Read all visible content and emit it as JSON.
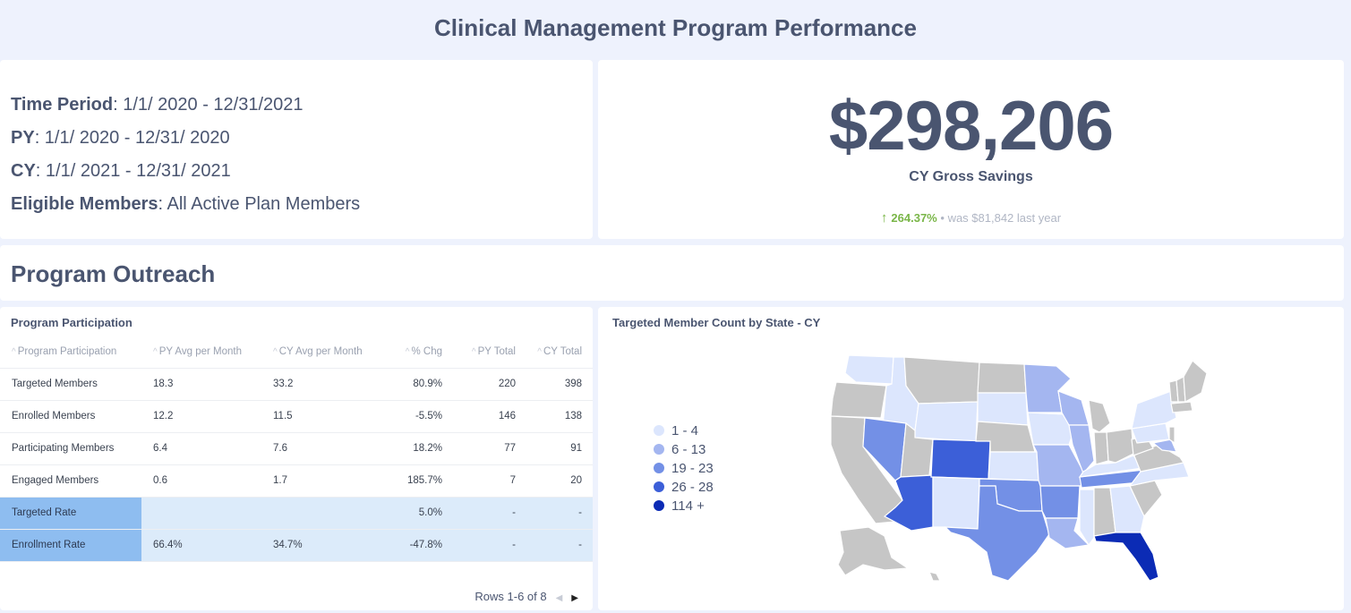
{
  "header": {
    "title": "Clinical Management Program Performance"
  },
  "info": {
    "lines": [
      {
        "label": "Time Period",
        "value": ": 1/1/ 2020 - 12/31/2021"
      },
      {
        "label": "PY",
        "value": ": 1/1/ 2020 - 12/31/ 2020"
      },
      {
        "label": "CY",
        "value": ": 1/1/ 2021 - 12/31/ 2021"
      },
      {
        "label": "Eligible Members",
        "value": ": All Active Plan Members"
      }
    ]
  },
  "kpi": {
    "value": "$298,206",
    "label": "CY Gross Savings",
    "change_pct": "264.37%",
    "separator": "•",
    "was_text": "was $81,842",
    "period_text": "last year",
    "arrow_icon": "arrow-up-icon",
    "up_color": "#7ab648"
  },
  "outreach": {
    "title": "Program Outreach"
  },
  "table": {
    "title": "Program Participation",
    "columns": [
      "Program Participation",
      "PY Avg per Month",
      "CY Avg per Month",
      "% Chg",
      "PY Total",
      "CY Total"
    ],
    "rows": [
      [
        "Targeted Members",
        "18.3",
        "33.2",
        "80.9%",
        "220",
        "398"
      ],
      [
        "Enrolled Members",
        "12.2",
        "11.5",
        "-5.5%",
        "146",
        "138"
      ],
      [
        "Participating Members",
        "6.4",
        "7.6",
        "18.2%",
        "77",
        "91"
      ],
      [
        "Engaged Members",
        "0.6",
        "1.7",
        "185.7%",
        "7",
        "20"
      ],
      [
        "Targeted Rate",
        "",
        "",
        "5.0%",
        "-",
        "-"
      ],
      [
        "Enrollment Rate",
        "66.4%",
        "34.7%",
        "-47.8%",
        "-",
        "-"
      ]
    ],
    "pager": "Rows 1-6 of 8"
  },
  "map": {
    "title": "Targeted Member Count by State - CY",
    "legend": [
      {
        "label": "1 - 4",
        "color": "#dce6fd"
      },
      {
        "label": "6 - 13",
        "color": "#a4b6f0"
      },
      {
        "label": "19 - 23",
        "color": "#7390e6"
      },
      {
        "label": "26 - 28",
        "color": "#3c5fd8"
      },
      {
        "label": "114 +",
        "color": "#0b2bb5"
      }
    ],
    "no_data_color": "#c6c6c6"
  }
}
